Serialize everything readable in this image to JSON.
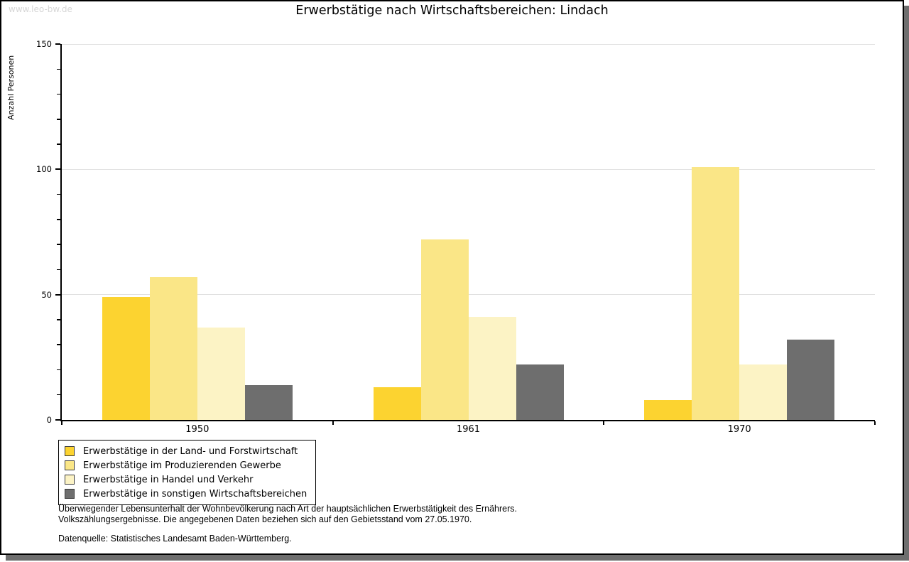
{
  "watermark": "www.leo-bw.de",
  "notes": {
    "line1": "Überwiegender Lebensunterhalt der Wohnbevölkerung nach Art der hauptsächlichen Erwerbstätigkeit des Ernährers.",
    "line2": "Volkszählungsergebnisse. Die angegebenen Daten beziehen sich auf den Gebietsstand vom 27.05.1970.",
    "source": "Datenquelle: Statistisches Landesamt Baden-Württemberg."
  },
  "chart_data": {
    "type": "bar",
    "title": "Erwerbstätige nach Wirtschaftsbereichen: Lindach",
    "ylabel": "Anzahl Personen",
    "xlabel": "",
    "ylim": [
      0,
      150
    ],
    "yticks_major": [
      0,
      50,
      100,
      150
    ],
    "ytick_minor_step": 10,
    "grid": true,
    "legend_position": "bottom-left",
    "categories": [
      "1950",
      "1961",
      "1970"
    ],
    "series": [
      {
        "name": "Erwerbstätige in der Land- und Forstwirtschaft",
        "color": "#FCD330",
        "values": [
          49,
          13,
          8
        ]
      },
      {
        "name": "Erwerbstätige im Produzierenden Gewerbe",
        "color": "#FAE687",
        "values": [
          57,
          72,
          101
        ]
      },
      {
        "name": "Erwerbstätige in Handel und Verkehr",
        "color": "#FCF3C5",
        "values": [
          37,
          41,
          22
        ]
      },
      {
        "name": "Erwerbstätige in sonstigen Wirtschaftsbereichen",
        "color": "#6E6E6E",
        "values": [
          14,
          22,
          32
        ]
      }
    ]
  }
}
